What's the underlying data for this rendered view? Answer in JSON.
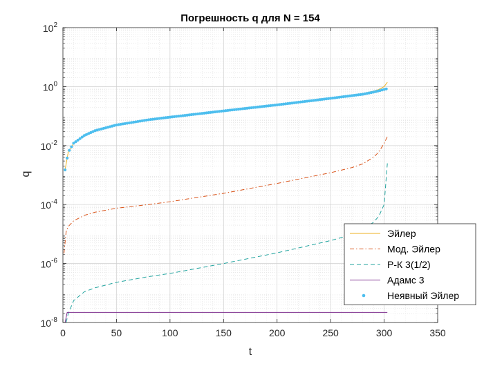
{
  "chart_data": {
    "type": "line",
    "title": "Погрешность q для N = 154",
    "xlabel": "t",
    "ylabel": "q",
    "xlim": [
      0,
      350
    ],
    "ylim": [
      1e-08,
      100
    ],
    "yscale": "log",
    "grid": true,
    "minor_grid": true,
    "legend_position": "lower-right",
    "x_ticks": [
      {
        "value": 0,
        "label": "0"
      },
      {
        "value": 50,
        "label": "50"
      },
      {
        "value": 100,
        "label": "100"
      },
      {
        "value": 150,
        "label": "150"
      },
      {
        "value": 200,
        "label": "200"
      },
      {
        "value": 250,
        "label": "250"
      },
      {
        "value": 300,
        "label": "300"
      },
      {
        "value": 350,
        "label": "350"
      }
    ],
    "y_ticks": [
      {
        "value": 1e-08,
        "base": "10",
        "exp": "-8"
      },
      {
        "value": 1e-06,
        "base": "10",
        "exp": "-6"
      },
      {
        "value": 0.0001,
        "base": "10",
        "exp": "-4"
      },
      {
        "value": 0.01,
        "base": "10",
        "exp": "-2"
      },
      {
        "value": 1,
        "base": "10",
        "exp": "0"
      },
      {
        "value": 100,
        "base": "10",
        "exp": "2"
      }
    ],
    "series": [
      {
        "name": "Эйлер",
        "style": "solid",
        "color": "#EDB120",
        "x": [
          2,
          5,
          10,
          20,
          30,
          50,
          80,
          100,
          150,
          200,
          250,
          280,
          290,
          295,
          300,
          303
        ],
        "y": [
          0.0015,
          0.006,
          0.012,
          0.022,
          0.032,
          0.05,
          0.075,
          0.092,
          0.15,
          0.24,
          0.4,
          0.58,
          0.7,
          0.8,
          1.0,
          1.4
        ]
      },
      {
        "name": "Мод. Эйлер",
        "style": "dashdot",
        "color": "#D95319",
        "x": [
          1,
          3,
          5,
          10,
          20,
          30,
          50,
          80,
          100,
          150,
          200,
          250,
          270,
          280,
          290,
          295,
          300,
          303
        ],
        "y": [
          2.2e-06,
          1.2e-05,
          1.8e-05,
          2.8e-05,
          4.3e-05,
          5.5e-05,
          7.5e-05,
          0.0001,
          0.000125,
          0.00024,
          0.00052,
          0.0012,
          0.0018,
          0.0024,
          0.004,
          0.006,
          0.012,
          0.02
        ]
      },
      {
        "name": "Р-К 3(1/2)",
        "style": "dashed",
        "color": "#20A39E",
        "x": [
          3,
          5,
          10,
          20,
          30,
          50,
          80,
          100,
          150,
          200,
          250,
          270,
          280,
          290,
          295,
          300,
          303
        ],
        "y": [
          1e-08,
          2e-08,
          5.5e-08,
          1.1e-07,
          1.5e-07,
          2.3e-07,
          3.6e-07,
          4.6e-07,
          1e-06,
          2.3e-06,
          6e-06,
          9.5e-06,
          1.4e-05,
          2.5e-05,
          4e-05,
          0.0001,
          0.0025
        ]
      },
      {
        "name": "Адамс 3",
        "style": "solid",
        "color": "#7E2F8E",
        "x": [
          2,
          3,
          4,
          303
        ],
        "y": [
          1e-08,
          1.5e-08,
          2.2e-08,
          2.2e-08
        ]
      },
      {
        "name": "Неявный Эйлер",
        "style": "dots",
        "color": "#4DBEEE",
        "x_start": 2,
        "x_end": 303,
        "x_step": 2,
        "y_function_points": [
          [
            2,
            0.0015
          ],
          [
            5,
            0.006
          ],
          [
            10,
            0.012
          ],
          [
            20,
            0.022
          ],
          [
            30,
            0.032
          ],
          [
            50,
            0.05
          ],
          [
            80,
            0.075
          ],
          [
            100,
            0.092
          ],
          [
            150,
            0.15
          ],
          [
            200,
            0.24
          ],
          [
            250,
            0.4
          ],
          [
            280,
            0.55
          ],
          [
            290,
            0.65
          ],
          [
            300,
            0.8
          ],
          [
            303,
            0.85
          ]
        ]
      }
    ]
  }
}
